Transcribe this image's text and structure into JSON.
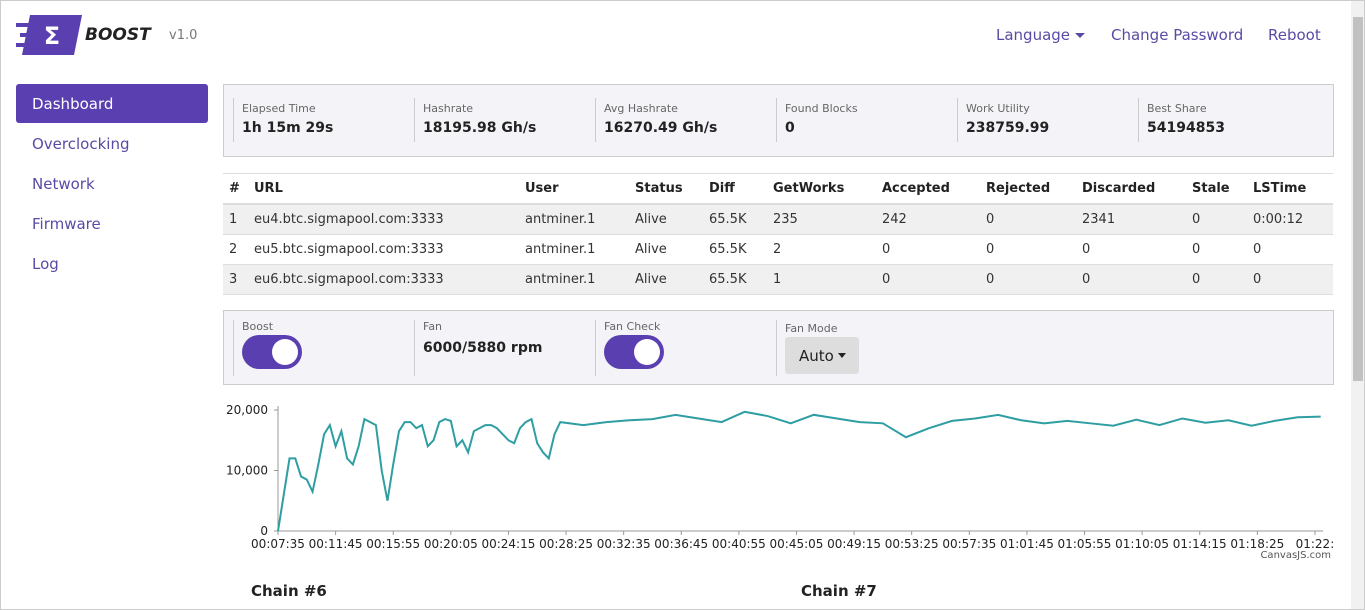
{
  "header": {
    "brand": "BOOST",
    "version": "v1.0",
    "nav": [
      "Language",
      "Change Password",
      "Reboot"
    ]
  },
  "sidebar": {
    "items": [
      "Dashboard",
      "Overclocking",
      "Network",
      "Firmware",
      "Log"
    ],
    "active": 0
  },
  "stats": [
    {
      "label": "Elapsed Time",
      "value": "1h 15m 29s"
    },
    {
      "label": "Hashrate",
      "value": "18195.98 Gh/s"
    },
    {
      "label": "Avg Hashrate",
      "value": "16270.49 Gh/s"
    },
    {
      "label": "Found Blocks",
      "value": "0"
    },
    {
      "label": "Work Utility",
      "value": "238759.99"
    },
    {
      "label": "Best Share",
      "value": "54194853"
    }
  ],
  "table": {
    "columns": [
      "#",
      "URL",
      "User",
      "Status",
      "Diff",
      "GetWorks",
      "Accepted",
      "Rejected",
      "Discarded",
      "Stale",
      "LSTime"
    ],
    "rows": [
      [
        "1",
        "eu4.btc.sigmapool.com:3333",
        "antminer.1",
        "Alive",
        "65.5K",
        "235",
        "242",
        "0",
        "2341",
        "0",
        "0:00:12"
      ],
      [
        "2",
        "eu5.btc.sigmapool.com:3333",
        "antminer.1",
        "Alive",
        "65.5K",
        "2",
        "0",
        "0",
        "0",
        "0",
        "0"
      ],
      [
        "3",
        "eu6.btc.sigmapool.com:3333",
        "antminer.1",
        "Alive",
        "65.5K",
        "1",
        "0",
        "0",
        "0",
        "0",
        "0"
      ]
    ]
  },
  "controls": [
    {
      "label": "Boost",
      "toggle": true
    },
    {
      "label": "Fan",
      "value": "6000/5880 rpm"
    },
    {
      "label": "Fan Check",
      "toggle": true
    },
    {
      "label": "Fan Mode",
      "dropdown": "Auto"
    }
  ],
  "chart_data": {
    "type": "line",
    "color": "#2e9ea3",
    "credit": "CanvasJS.com",
    "x": [
      455,
      480,
      505,
      530,
      555,
      580,
      605,
      630,
      655,
      680,
      705,
      730,
      755,
      780,
      805,
      830,
      855,
      880,
      905,
      930,
      955,
      980,
      1005,
      1030,
      1055,
      1080,
      1105,
      1130,
      1155,
      1180,
      1205,
      1230,
      1255,
      1280,
      1305,
      1330,
      1355,
      1380,
      1405,
      1430,
      1455,
      1480,
      1505,
      1530,
      1555,
      1580,
      1605,
      1630,
      1655,
      1680,
      1780,
      1880,
      1980,
      2080,
      2180,
      2280,
      2380,
      2480,
      2580,
      2680,
      2780,
      2880,
      2980,
      3080,
      3180,
      3280,
      3380,
      3480,
      3580,
      3680,
      3780,
      3880,
      3980,
      4080,
      4180,
      4280,
      4380,
      4480,
      4580,
      4680,
      4780,
      4880,
      4980
    ],
    "values": [
      0,
      6000,
      12000,
      12000,
      9000,
      8500,
      6500,
      11000,
      16000,
      17500,
      14000,
      16500,
      12000,
      11000,
      14000,
      18500,
      18000,
      17500,
      10000,
      5000,
      11000,
      16500,
      18000,
      18000,
      17000,
      17500,
      14000,
      15000,
      18000,
      18500,
      18200,
      14000,
      15000,
      13000,
      16500,
      17000,
      17500,
      17500,
      17000,
      16000,
      15000,
      14500,
      17000,
      18000,
      18500,
      14500,
      13000,
      12000,
      16000,
      18000,
      17500,
      18000,
      18300,
      18500,
      19200,
      18600,
      18000,
      19700,
      19000,
      17800,
      19200,
      18600,
      18000,
      17800,
      15500,
      17000,
      18200,
      18600,
      19200,
      18300,
      17800,
      18200,
      17800,
      17400,
      18400,
      17500,
      18600,
      17900,
      18300,
      17400,
      18200,
      18800,
      18900
    ],
    "xlim": [
      455,
      4990
    ],
    "ylim": [
      0,
      20000
    ],
    "xticks": [
      {
        "value": 455,
        "label": "00:07:35"
      },
      {
        "value": 705,
        "label": "00:11:45"
      },
      {
        "value": 955,
        "label": "00:15:55"
      },
      {
        "value": 1205,
        "label": "00:20:05"
      },
      {
        "value": 1455,
        "label": "00:24:15"
      },
      {
        "value": 1705,
        "label": "00:28:25"
      },
      {
        "value": 1955,
        "label": "00:32:35"
      },
      {
        "value": 2205,
        "label": "00:36:45"
      },
      {
        "value": 2455,
        "label": "00:40:55"
      },
      {
        "value": 2705,
        "label": "00:45:05"
      },
      {
        "value": 2955,
        "label": "00:49:15"
      },
      {
        "value": 3205,
        "label": "00:53:25"
      },
      {
        "value": 3455,
        "label": "00:57:35"
      },
      {
        "value": 3705,
        "label": "01:01:45"
      },
      {
        "value": 3955,
        "label": "01:05:55"
      },
      {
        "value": 4205,
        "label": "01:10:05"
      },
      {
        "value": 4455,
        "label": "01:14:15"
      },
      {
        "value": 4705,
        "label": "01:18:25"
      },
      {
        "value": 4955,
        "label": "01:22:"
      }
    ],
    "yticks": [
      0,
      {
        "value": 10000,
        "label": "10,000"
      },
      {
        "value": 20000,
        "label": "20,000"
      }
    ]
  },
  "chains": [
    "Chain #6",
    "Chain #7"
  ]
}
